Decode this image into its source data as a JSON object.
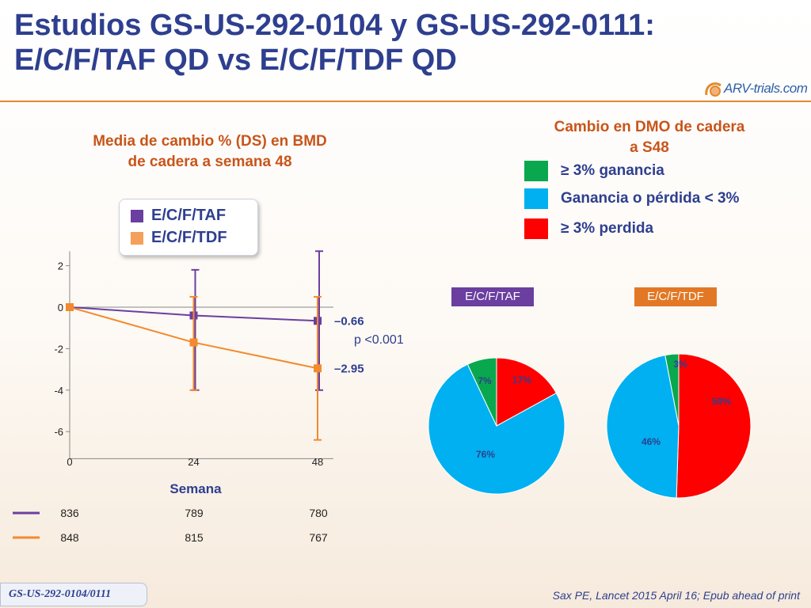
{
  "header": {
    "title_line1": "Estudios GS-US-292-0104 y GS-US-292-0111:",
    "title_line2": "E/C/F/TAF QD vs E/C/F/TDF QD",
    "logo_text": "ARV-trials.com"
  },
  "left_panel": {
    "subtitle_line1": "Media de cambio %  (DS) en BMD",
    "subtitle_line2": "de cadera a semana 48"
  },
  "right_panel": {
    "subtitle_line1": "Cambio en DMO de cadera",
    "subtitle_line2": "a S48"
  },
  "footer": {
    "left": "GS-US-292-0104/0111",
    "right": "Sax PE, Lancet 2015 April 16; Epub ahead of print"
  },
  "colors": {
    "taf": "#6a3fa0",
    "tdf": "#f28a2e",
    "gain": "#0aa84e",
    "neutral": "#00b0f0",
    "loss": "#ff0000",
    "title": "#2e3f8f",
    "subtitle": "#c8551a"
  },
  "chart_data": [
    {
      "type": "line",
      "title": "Media de cambio %  (DS) en BMD de cadera a semana 48",
      "xlabel": "Semana",
      "ylabel": "",
      "x": [
        0,
        24,
        48
      ],
      "x_ticks": [
        "0",
        "24",
        "48"
      ],
      "ylim": [
        -7,
        3
      ],
      "y_ticks": [
        "2",
        "0",
        "-2",
        "-4",
        "-6"
      ],
      "y_tick_values": [
        2,
        0,
        -2,
        -4,
        -6
      ],
      "series": [
        {
          "name": "E/C/F/TAF",
          "color": "#6a3fa0",
          "values": [
            0,
            -0.4,
            -0.66
          ],
          "error_low": [
            0,
            -4.0,
            -4.0
          ],
          "error_high": [
            0,
            1.8,
            2.7
          ],
          "end_label": "–0.66",
          "n": [
            "836",
            "789",
            "780"
          ]
        },
        {
          "name": "E/C/F/TDF",
          "color": "#f28a2e",
          "values": [
            0,
            -1.7,
            -2.95
          ],
          "error_low": [
            0,
            -4.0,
            -6.4
          ],
          "error_high": [
            0,
            0.5,
            0.5
          ],
          "end_label": "–2.95",
          "n": [
            "848",
            "815",
            "767"
          ]
        }
      ],
      "annotation": "p <0.001",
      "legend": "top-left"
    },
    {
      "type": "pie",
      "title": "Cambio en DMO de cadera a S48",
      "legend": [
        {
          "label": "≥ 3% ganancia",
          "color": "#0aa84e"
        },
        {
          "label": "Ganancia o pérdida < 3%",
          "color": "#00b0f0"
        },
        {
          "label": "≥ 3% perdida",
          "color": "#ff0000"
        }
      ],
      "pies": [
        {
          "name": "E/C/F/TAF",
          "slices": [
            {
              "label": "17%",
              "value": 17,
              "color": "#ff0000"
            },
            {
              "label": "76%",
              "value": 76,
              "color": "#00b0f0"
            },
            {
              "label": "7%",
              "value": 7,
              "color": "#0aa84e"
            }
          ]
        },
        {
          "name": "E/C/F/TDF",
          "slices": [
            {
              "label": "50%",
              "value": 50,
              "color": "#ff0000"
            },
            {
              "label": "46%",
              "value": 46,
              "color": "#00b0f0"
            },
            {
              "label": "3%",
              "value": 3,
              "color": "#0aa84e"
            }
          ]
        }
      ]
    }
  ]
}
